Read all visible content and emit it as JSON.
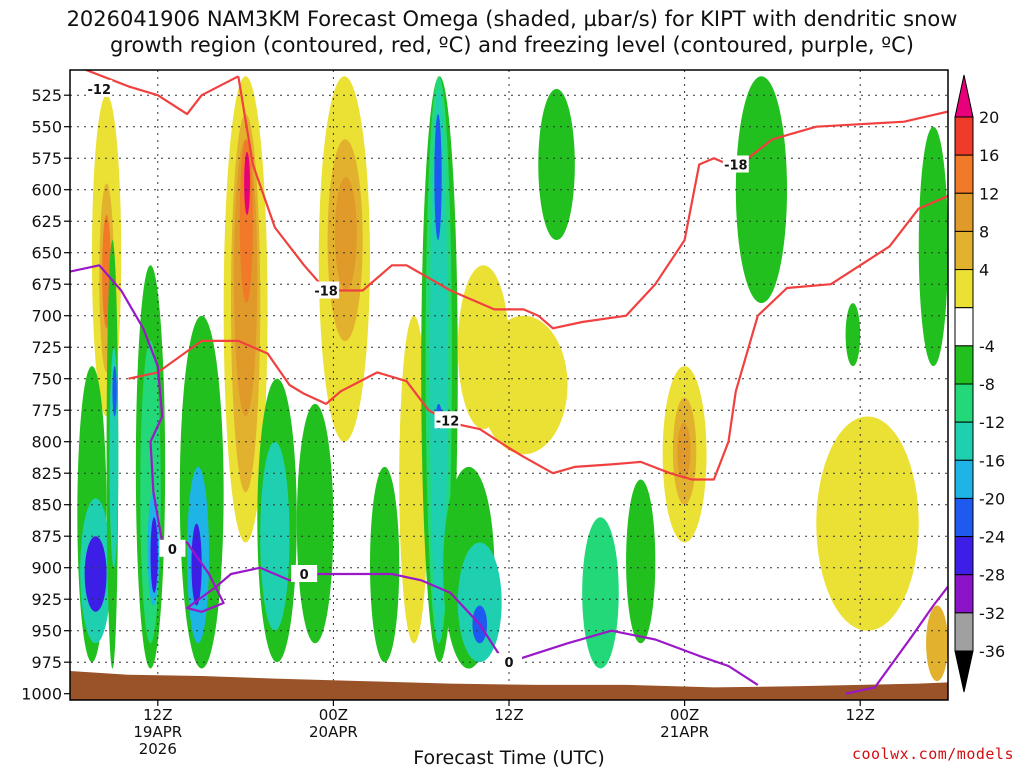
{
  "title_line1": "2026041906 NAM3KM Forecast Omega (shaded, µbar/s) for KIPT with dendritic snow",
  "title_line2": "growth region (contoured, red, ºC) and freezing level (contoured, purple, ºC)",
  "credit": "coolwx.com/models",
  "chart_data": {
    "type": "heatmap",
    "xlabel": "Forecast Time (UTC)",
    "ylabel": "Pressure (hPa)",
    "x_hours_range": [
      -6,
      54
    ],
    "x_ticks": [
      {
        "hour": 0,
        "lines": [
          "12Z",
          "19APR",
          "2026"
        ]
      },
      {
        "hour": 12,
        "lines": [
          "00Z",
          "20APR"
        ]
      },
      {
        "hour": 24,
        "lines": [
          "12Z"
        ]
      },
      {
        "hour": 36,
        "lines": [
          "00Z",
          "21APR"
        ]
      },
      {
        "hour": 48,
        "lines": [
          "12Z"
        ]
      }
    ],
    "y_ticks": [
      525,
      550,
      575,
      600,
      625,
      650,
      675,
      700,
      725,
      750,
      775,
      800,
      825,
      850,
      875,
      900,
      925,
      950,
      975,
      1000
    ],
    "colorbar": {
      "labels": [
        20,
        16,
        12,
        8,
        4,
        -4,
        -8,
        -12,
        -16,
        -20,
        -24,
        -28,
        -32,
        -36
      ],
      "bins": [
        {
          "color": "#e8007a"
        },
        {
          "color": "#f03a2a"
        },
        {
          "color": "#f07a28"
        },
        {
          "color": "#e09a2a"
        },
        {
          "color": "#e2b22e"
        },
        {
          "color": "#ebe034"
        },
        {
          "color": "#ffffff"
        },
        {
          "color": "#22c01e"
        },
        {
          "color": "#22d878"
        },
        {
          "color": "#1ed0b0"
        },
        {
          "color": "#1eb4e6"
        },
        {
          "color": "#1e5af0"
        },
        {
          "color": "#3c1ee6"
        },
        {
          "color": "#8c14c8"
        },
        {
          "color": "#a0a0a0"
        },
        {
          "color": "#000000"
        }
      ]
    },
    "omega_cells": [
      {
        "t": -4.5,
        "t2": -2.5,
        "p": 525,
        "p2": 780,
        "v": 6
      },
      {
        "t": -4,
        "t2": -3,
        "p": 595,
        "p2": 745,
        "v": 10
      },
      {
        "t": -3.8,
        "t2": -3.2,
        "p": 620,
        "p2": 710,
        "v": 18
      },
      {
        "t": -5.5,
        "t2": -3.5,
        "p": 740,
        "p2": 975,
        "v": -6
      },
      {
        "t": -5.3,
        "t2": -3.2,
        "p": 845,
        "p2": 960,
        "v": -16
      },
      {
        "t": -5,
        "t2": -3.5,
        "p": 875,
        "p2": 935,
        "v": -26
      },
      {
        "t": -3.5,
        "t2": -2.7,
        "p": 640,
        "p2": 980,
        "v": -5
      },
      {
        "t": -3.3,
        "t2": -2.7,
        "p": 725,
        "p2": 900,
        "v": -14
      },
      {
        "t": -3.1,
        "t2": -2.8,
        "p": 740,
        "p2": 780,
        "v": -21
      },
      {
        "t": -1.5,
        "t2": 0.5,
        "p": 660,
        "p2": 980,
        "v": -6
      },
      {
        "t": -1.2,
        "t2": 0.2,
        "p": 720,
        "p2": 960,
        "v": -12
      },
      {
        "t": -0.7,
        "t2": 0.1,
        "p": 840,
        "p2": 930,
        "v": -20
      },
      {
        "t": -0.5,
        "t2": 0,
        "p": 860,
        "p2": 920,
        "v": -28
      },
      {
        "t": 1.5,
        "t2": 4.5,
        "p": 700,
        "p2": 980,
        "v": -8
      },
      {
        "t": 2,
        "t2": 3.5,
        "p": 820,
        "p2": 960,
        "v": -18
      },
      {
        "t": 2.3,
        "t2": 3,
        "p": 865,
        "p2": 930,
        "v": -26
      },
      {
        "t": 4.5,
        "t2": 7.5,
        "p": 510,
        "p2": 880,
        "v": 6
      },
      {
        "t": 5,
        "t2": 7,
        "p": 540,
        "p2": 840,
        "v": 10
      },
      {
        "t": 5.2,
        "t2": 6.8,
        "p": 560,
        "p2": 780,
        "v": 14
      },
      {
        "t": 5.6,
        "t2": 6.5,
        "p": 560,
        "p2": 690,
        "v": 17
      },
      {
        "t": 5.9,
        "t2": 6.3,
        "p": 570,
        "p2": 620,
        "v": 22
      },
      {
        "t": 6.8,
        "t2": 9.5,
        "p": 750,
        "p2": 975,
        "v": -8
      },
      {
        "t": 7,
        "t2": 9,
        "p": 800,
        "p2": 950,
        "v": -13
      },
      {
        "t": 9.5,
        "t2": 12,
        "p": 770,
        "p2": 960,
        "v": -7
      },
      {
        "t": 11,
        "t2": 14.5,
        "p": 510,
        "p2": 800,
        "v": 5
      },
      {
        "t": 11.6,
        "t2": 14,
        "p": 560,
        "p2": 720,
        "v": 10
      },
      {
        "t": 12.1,
        "t2": 13.6,
        "p": 590,
        "p2": 680,
        "v": 13
      },
      {
        "t": 14.5,
        "t2": 16.5,
        "p": 820,
        "p2": 975,
        "v": -7
      },
      {
        "t": 16.5,
        "t2": 18.5,
        "p": 700,
        "p2": 960,
        "v": 5
      },
      {
        "t": 18,
        "t2": 20.5,
        "p": 510,
        "p2": 975,
        "v": -6
      },
      {
        "t": 18.3,
        "t2": 20.1,
        "p": 510,
        "p2": 960,
        "v": -10
      },
      {
        "t": 18.6,
        "t2": 19.8,
        "p": 520,
        "p2": 960,
        "v": -16
      },
      {
        "t": 18.9,
        "t2": 19.4,
        "p": 540,
        "p2": 640,
        "v": -24
      },
      {
        "t": 19,
        "t2": 19.4,
        "p": 770,
        "p2": 790,
        "v": -22
      },
      {
        "t": 19.5,
        "t2": 23,
        "p": 820,
        "p2": 980,
        "v": -8
      },
      {
        "t": 20.5,
        "t2": 23.5,
        "p": 880,
        "p2": 975,
        "v": -16
      },
      {
        "t": 21.5,
        "t2": 22.5,
        "p": 930,
        "p2": 960,
        "v": -22
      },
      {
        "t": 20.5,
        "t2": 24,
        "p": 660,
        "p2": 790,
        "v": 6
      },
      {
        "t": 22,
        "t2": 28,
        "p": 700,
        "p2": 810,
        "v": 6
      },
      {
        "t": 26,
        "t2": 28.5,
        "p": 520,
        "p2": 640,
        "v": -6
      },
      {
        "t": 29,
        "t2": 31.5,
        "p": 860,
        "p2": 980,
        "v": -9
      },
      {
        "t": 32,
        "t2": 34,
        "p": 830,
        "p2": 960,
        "v": -7
      },
      {
        "t": 34.5,
        "t2": 37.5,
        "p": 740,
        "p2": 880,
        "v": 6
      },
      {
        "t": 35.2,
        "t2": 36.8,
        "p": 765,
        "p2": 850,
        "v": 10
      },
      {
        "t": 35.5,
        "t2": 36.4,
        "p": 785,
        "p2": 830,
        "v": 15
      },
      {
        "t": 39.5,
        "t2": 43,
        "p": 510,
        "p2": 690,
        "v": -7
      },
      {
        "t": 45,
        "t2": 52,
        "p": 780,
        "p2": 950,
        "v": 5
      },
      {
        "t": 52,
        "t2": 54,
        "p": 550,
        "p2": 740,
        "v": -7
      },
      {
        "t": 47,
        "t2": 48,
        "p": 690,
        "p2": 740,
        "v": -7
      },
      {
        "t": 52.5,
        "t2": 54,
        "p": 930,
        "p2": 990,
        "v": 9
      }
    ],
    "dgz_contours": [
      {
        "label": "-12",
        "label_at": [
          -4,
          520
        ],
        "points": [
          [
            -6,
            500
          ],
          [
            -2,
            518
          ],
          [
            0,
            525
          ],
          [
            2,
            540
          ],
          [
            3,
            525
          ],
          [
            5.5,
            510
          ]
        ]
      },
      {
        "label": "-18",
        "label_at": [
          11.5,
          680
        ],
        "points": [
          [
            5.5,
            510
          ],
          [
            6.5,
            580
          ],
          [
            8,
            630
          ],
          [
            10,
            660
          ],
          [
            11.5,
            680
          ],
          [
            14,
            680
          ],
          [
            16,
            660
          ],
          [
            17,
            660
          ],
          [
            20,
            680
          ],
          [
            23,
            695
          ],
          [
            25,
            695
          ],
          [
            26,
            700
          ],
          [
            27,
            710
          ],
          [
            29,
            705
          ],
          [
            32,
            700
          ],
          [
            34,
            675
          ],
          [
            36,
            640
          ],
          [
            37,
            580
          ],
          [
            38,
            575
          ],
          [
            39,
            580
          ],
          [
            40,
            578
          ],
          [
            42,
            560
          ],
          [
            45,
            550
          ],
          [
            48,
            548
          ],
          [
            51,
            546
          ],
          [
            54,
            538
          ]
        ]
      },
      {
        "label": "-18",
        "label_at": [
          39.5,
          580
        ],
        "points": [
          [
            40,
            580
          ],
          [
            40,
            580
          ]
        ]
      },
      {
        "label": "-12",
        "label_at": [
          19.8,
          783
        ],
        "points": [
          [
            -2,
            750
          ],
          [
            0,
            745
          ],
          [
            3,
            720
          ],
          [
            5.5,
            720
          ],
          [
            7.5,
            730
          ],
          [
            9,
            755
          ],
          [
            10,
            762
          ],
          [
            11.5,
            770
          ],
          [
            12.5,
            760
          ],
          [
            15,
            745
          ],
          [
            17,
            752
          ],
          [
            18.5,
            775
          ],
          [
            20,
            785
          ],
          [
            22,
            790
          ],
          [
            24,
            805
          ],
          [
            25,
            812
          ],
          [
            27,
            825
          ],
          [
            28.5,
            820
          ],
          [
            31,
            818
          ],
          [
            33,
            816
          ],
          [
            35,
            825
          ],
          [
            36.5,
            830
          ],
          [
            38,
            830
          ],
          [
            39,
            800
          ],
          [
            39.5,
            760
          ],
          [
            41,
            700
          ],
          [
            43,
            678
          ],
          [
            46,
            675
          ],
          [
            48,
            660
          ],
          [
            50,
            645
          ],
          [
            52,
            615
          ],
          [
            54,
            605
          ]
        ]
      }
    ],
    "freezing_contours": [
      {
        "label": "0",
        "label_at": [
          1,
          885
        ],
        "points": [
          [
            -6,
            665
          ],
          [
            -4,
            660
          ],
          [
            -2.5,
            680
          ],
          [
            -1,
            710
          ],
          [
            0,
            740
          ],
          [
            0.3,
            780
          ],
          [
            -0.5,
            800
          ],
          [
            -0.3,
            840
          ],
          [
            0.3,
            880
          ],
          [
            2,
            880
          ],
          [
            3.5,
            905
          ],
          [
            4.5,
            928
          ],
          [
            3,
            935
          ],
          [
            2,
            932
          ],
          [
            4,
            915
          ],
          [
            5,
            905
          ],
          [
            7,
            900
          ],
          [
            9,
            910
          ],
          [
            11,
            905
          ],
          [
            13,
            905
          ],
          [
            16,
            905
          ],
          [
            18,
            910
          ],
          [
            20,
            920
          ],
          [
            22,
            945
          ],
          [
            23.5,
            972
          ],
          [
            24,
            975
          ],
          [
            28,
            960
          ],
          [
            31,
            950
          ],
          [
            34,
            957
          ],
          [
            37,
            970
          ],
          [
            39,
            978
          ],
          [
            41,
            993
          ]
        ]
      },
      {
        "label": "0",
        "label_at": [
          10,
          905
        ],
        "points": [
          [
            10,
            905
          ],
          [
            10,
            905
          ]
        ]
      },
      {
        "label": "0",
        "label_at": [
          24,
          975
        ],
        "points": [
          [
            24,
            975
          ],
          [
            24,
            975
          ]
        ]
      },
      {
        "label": "",
        "label_at": [
          0,
          0
        ],
        "points": [
          [
            47,
            1000
          ],
          [
            49,
            995
          ],
          [
            51.5,
            955
          ],
          [
            53,
            930
          ],
          [
            54,
            915
          ]
        ]
      }
    ],
    "topography": [
      [
        -6,
        982
      ],
      [
        -2,
        985
      ],
      [
        3,
        986
      ],
      [
        8,
        988
      ],
      [
        14,
        990
      ],
      [
        20,
        992
      ],
      [
        26,
        993
      ],
      [
        32,
        993
      ],
      [
        38,
        995
      ],
      [
        44,
        994
      ],
      [
        48,
        993
      ],
      [
        52,
        992
      ],
      [
        54,
        991
      ]
    ]
  }
}
